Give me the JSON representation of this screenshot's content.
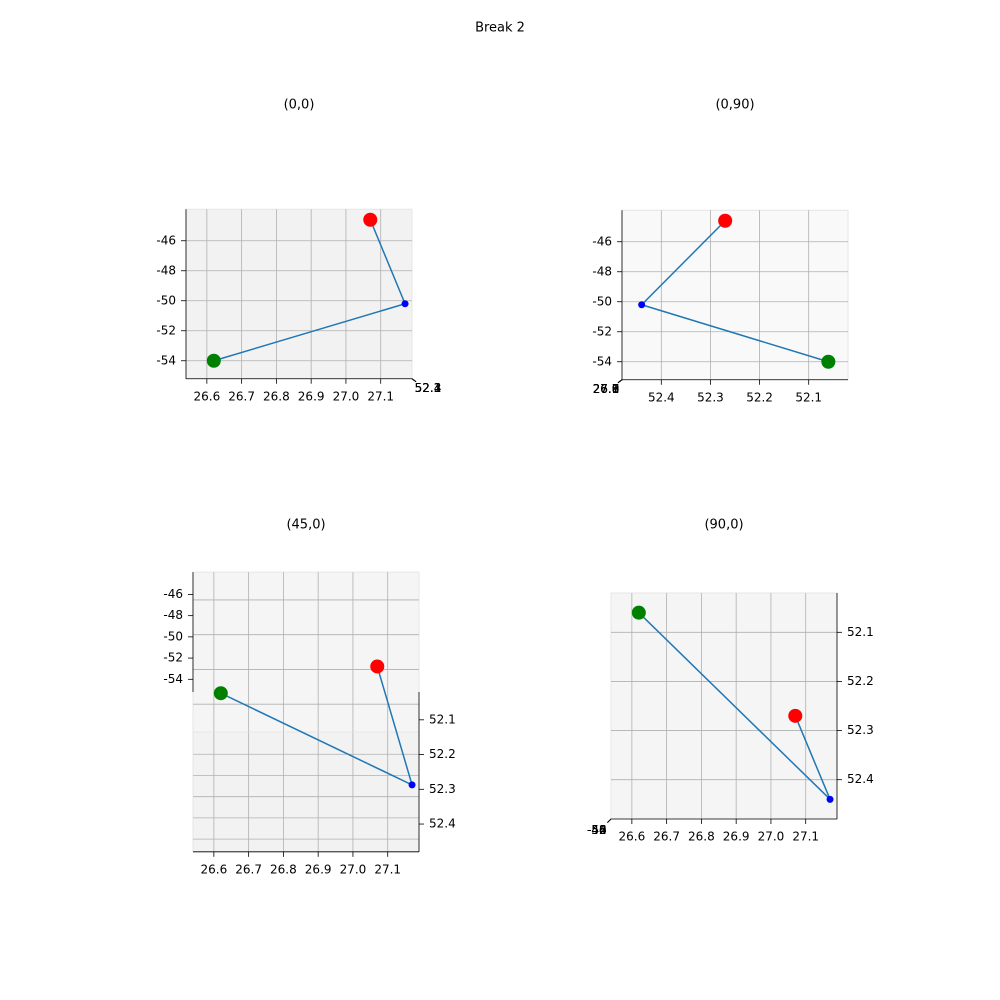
{
  "title": "Break 2",
  "chart_data": [
    {
      "type": "line3d",
      "title": "(0,0)",
      "elev": 0,
      "azim": 0,
      "x": [
        26.62,
        27.17,
        27.07
      ],
      "y": [
        52.06,
        52.44,
        52.27
      ],
      "z": [
        -54.0,
        -50.2,
        -44.6
      ],
      "line_color": "#1f77b4",
      "point_colors": [
        "green",
        "blue",
        "red"
      ],
      "xlim": [
        26.54,
        27.19
      ],
      "ylim": [
        52.02,
        52.48
      ],
      "zlim": [
        -55.2,
        -43.9
      ],
      "xticks": [
        26.6,
        26.7,
        26.8,
        26.9,
        {
          "value": 27,
          "label": "27.0"
        },
        27.1
      ],
      "yticks": [
        52.1,
        52.2,
        52.3,
        52.4
      ],
      "zticks": [
        -54,
        -52,
        -50,
        -48,
        -46
      ]
    },
    {
      "type": "line3d",
      "title": "(0,90)",
      "elev": 0,
      "azim": 90,
      "x": [
        26.62,
        27.17,
        27.07
      ],
      "y": [
        52.06,
        52.44,
        52.27
      ],
      "z": [
        -54.0,
        -50.2,
        -44.6
      ],
      "line_color": "#1f77b4",
      "point_colors": [
        "green",
        "blue",
        "red"
      ],
      "xlim": [
        26.54,
        27.19
      ],
      "ylim": [
        52.02,
        52.48
      ],
      "zlim": [
        -55.2,
        -43.9
      ],
      "xticks": [
        26.6,
        26.7,
        26.8,
        26.9,
        {
          "value": 27,
          "label": "27.0"
        },
        27.1
      ],
      "yticks": [
        52.1,
        52.2,
        52.3,
        52.4
      ],
      "zticks": [
        -54,
        -52,
        -50,
        -48,
        -46
      ]
    },
    {
      "type": "line3d",
      "title": "(45,0)",
      "elev": 45,
      "azim": 0,
      "x": [
        26.62,
        27.17,
        27.07
      ],
      "y": [
        52.06,
        52.44,
        52.27
      ],
      "z": [
        -54.0,
        -50.2,
        -44.6
      ],
      "line_color": "#1f77b4",
      "point_colors": [
        "green",
        "blue",
        "red"
      ],
      "xlim": [
        26.54,
        27.19
      ],
      "ylim": [
        52.02,
        52.48
      ],
      "zlim": [
        -55.2,
        -43.9
      ],
      "xticks": [
        26.6,
        26.7,
        26.8,
        26.9,
        {
          "value": 27,
          "label": "27.0"
        },
        27.1
      ],
      "yticks": [
        52.1,
        52.2,
        52.3,
        52.4
      ],
      "zticks": [
        -54,
        -52,
        -50,
        -48,
        -46
      ]
    },
    {
      "type": "line3d",
      "title": "(90,0)",
      "elev": 90,
      "azim": 0,
      "x": [
        26.62,
        27.17,
        27.07
      ],
      "y": [
        52.06,
        52.44,
        52.27
      ],
      "z": [
        -54.0,
        -50.2,
        -44.6
      ],
      "line_color": "#1f77b4",
      "point_colors": [
        "green",
        "blue",
        "red"
      ],
      "xlim": [
        26.54,
        27.19
      ],
      "ylim": [
        52.02,
        52.48
      ],
      "zlim": [
        -55.2,
        -43.9
      ],
      "xticks": [
        26.6,
        26.7,
        26.8,
        26.9,
        {
          "value": 27,
          "label": "27.0"
        },
        27.1
      ],
      "yticks": [
        52.1,
        52.2,
        52.3,
        52.4
      ],
      "zticks": [
        -54,
        -52,
        -50,
        -48,
        -46
      ]
    }
  ]
}
